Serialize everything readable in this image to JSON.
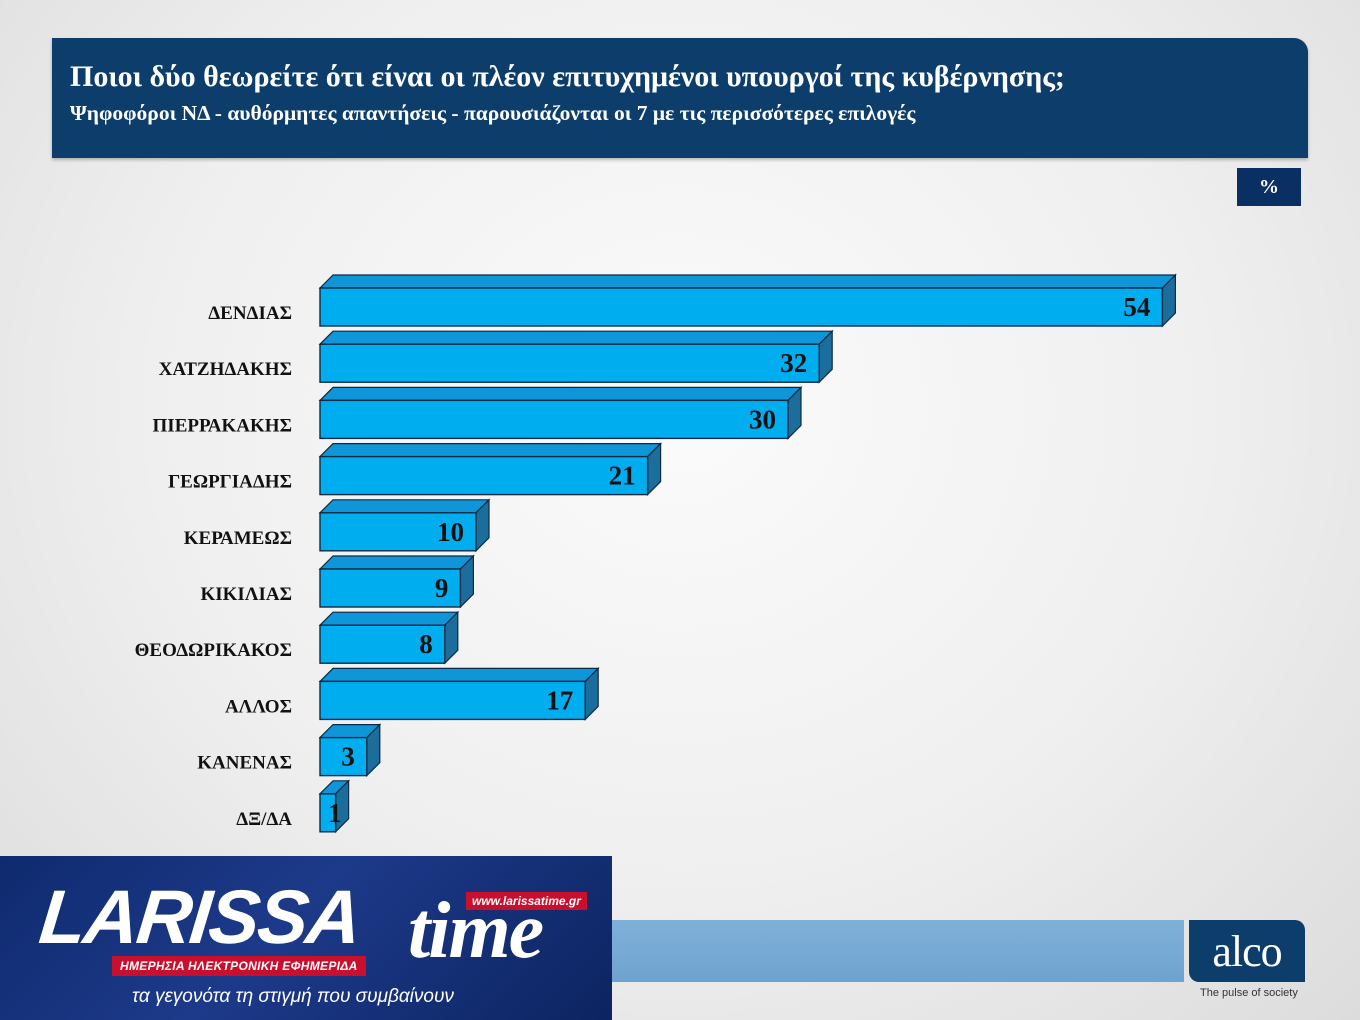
{
  "header": {
    "title": "Ποιοι δύο θεωρείτε ότι είναι οι πλέον επιτυχημένοι υπουργοί της κυβέρνησης;",
    "subtitle": "Ψηφοφόροι ΝΔ - αυθόρμητες απαντήσεις - παρουσιάζονται οι 7 με τις περισσότερες επιλογές"
  },
  "unit_label": "%",
  "chart_data": {
    "type": "bar",
    "orientation": "horizontal",
    "categories": [
      "ΔΕΝΔΙΑΣ",
      "ΧΑΤΖΗΔΑΚΗΣ",
      "ΠΙΕΡΡΑΚΑΚΗΣ",
      "ΓΕΩΡΓΙΑΔΗΣ",
      "ΚΕΡΑΜΕΩΣ",
      "ΚΙΚΙΛΙΑΣ",
      "ΘΕΟΔΩΡΙΚΑΚΟΣ",
      "ΑΛΛΟΣ",
      "ΚΑΝΕΝΑΣ",
      "ΔΞ/ΔΑ"
    ],
    "values": [
      54,
      32,
      30,
      21,
      10,
      9,
      8,
      17,
      3,
      1
    ],
    "bar_color": "#00aeef",
    "bar_dark": "#1b6d9c",
    "bar_top": "#0f96d8",
    "grid": false
  },
  "branding": {
    "alco_logo": "alco",
    "alco_tagline": "The pulse of society",
    "site_name": "LARISSA",
    "site_name_suffix": "time",
    "site_url": "www.larissatime.gr",
    "site_tagline_red": "ΗΜΕΡΗΣΙΑ ΗΛΕΚΤΡΟΝΙΚΗ ΕΦΗΜΕΡΙΔΑ",
    "site_tagline": "τα γεγονότα τη στιγμή που συμβαίνουν"
  }
}
